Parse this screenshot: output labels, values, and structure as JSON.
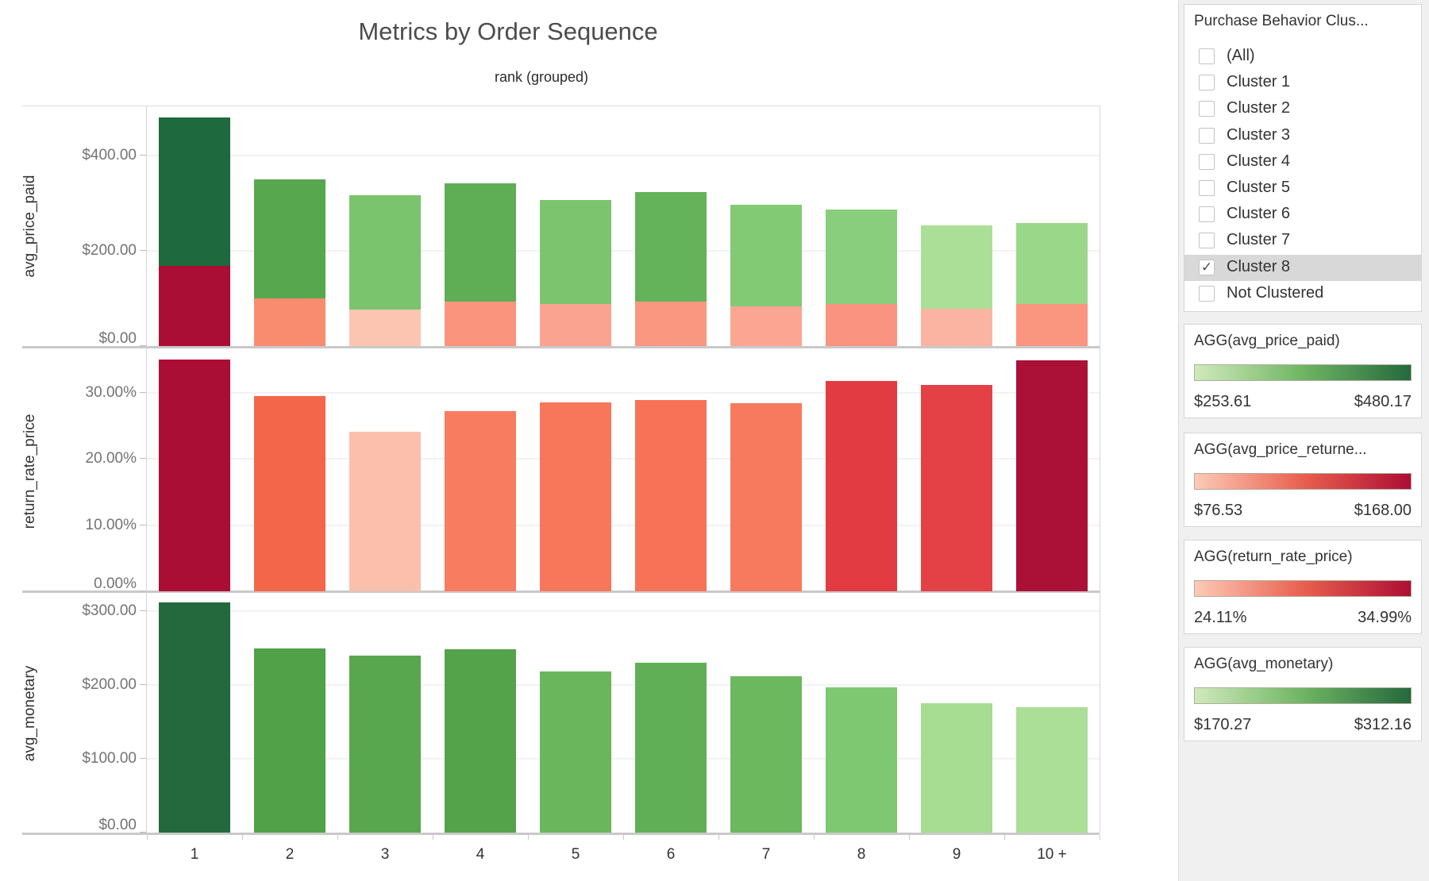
{
  "title": "Metrics by Order Sequence",
  "x_axis": {
    "title": "rank (grouped)",
    "categories": [
      "1",
      "2",
      "3",
      "4",
      "5",
      "6",
      "7",
      "8",
      "9",
      "10 +"
    ]
  },
  "panels": [
    {
      "field": "avg_price_paid"
    },
    {
      "field": "return_rate_price"
    },
    {
      "field": "avg_monetary"
    }
  ],
  "chart_data": [
    {
      "type": "bar",
      "stacked": true,
      "title": "avg_price_paid (stacked: avg_price_returned bottom + remainder top)",
      "categories": [
        "1",
        "2",
        "3",
        "4",
        "5",
        "6",
        "7",
        "8",
        "9",
        "10 +"
      ],
      "series": [
        {
          "name": "avg_price_paid_total",
          "values": [
            480.17,
            350,
            316.5,
            341,
            306,
            323,
            296,
            286,
            253.61,
            258.3
          ]
        },
        {
          "name": "avg_price_returned_bottom_segment",
          "values": [
            168.0,
            100,
            76.53,
            93,
            88,
            93,
            84,
            89,
            78,
            88
          ]
        }
      ],
      "top_segment_colors": [
        "#1e6a3e",
        "#57a74e",
        "#79c46c",
        "#5fae55",
        "#7cc46e",
        "#64b259",
        "#82ca74",
        "#89ce7c",
        "#abdf97",
        "#9bd789"
      ],
      "bottom_segment_colors": [
        "#aa0e35",
        "#f98b6e",
        "#fcc5b1",
        "#fa947d",
        "#fba391",
        "#fa9780",
        "#fba592",
        "#fa9480",
        "#fcb4a2",
        "#fa9580"
      ],
      "ylabel": "avg_price_paid",
      "yticks": [
        "$0.00",
        "$200.00",
        "$400.00"
      ],
      "ytick_values": [
        0,
        200,
        400
      ],
      "ylim": [
        0,
        505
      ],
      "grid": true
    },
    {
      "type": "bar",
      "title": "return_rate_price",
      "categories": [
        "1",
        "2",
        "3",
        "4",
        "5",
        "6",
        "7",
        "8",
        "9",
        "10 +"
      ],
      "values": [
        34.99,
        29.5,
        24.11,
        27.2,
        28.5,
        28.9,
        28.4,
        31.7,
        31.1,
        34.9
      ],
      "bar_colors": [
        "#aa0e35",
        "#f4664a",
        "#fcbfab",
        "#f87c60",
        "#f8775b",
        "#f77257",
        "#f87a5e",
        "#e23b41",
        "#e34146",
        "#ab1036"
      ],
      "ylabel": "return_rate_price",
      "yticks": [
        "0.00%",
        "10.00%",
        "20.00%",
        "30.00%"
      ],
      "ytick_values": [
        0,
        10,
        20,
        30
      ],
      "ylim": [
        0,
        36.3
      ],
      "grid": true
    },
    {
      "type": "bar",
      "title": "avg_monetary",
      "categories": [
        "1",
        "2",
        "3",
        "4",
        "5",
        "6",
        "7",
        "8",
        "9",
        "10 +"
      ],
      "values": [
        312.16,
        250,
        240,
        248,
        218,
        230,
        212,
        197,
        175.6,
        170.27
      ],
      "bar_colors": [
        "#24693d",
        "#51a148",
        "#58a64e",
        "#54a34b",
        "#69b65d",
        "#60af56",
        "#6bb85f",
        "#7fc872",
        "#a7dc93",
        "#abdf97"
      ],
      "ylabel": "avg_monetary",
      "yticks": [
        "$0.00",
        "$100.00",
        "$200.00",
        "$300.00"
      ],
      "ytick_values": [
        0,
        100,
        200,
        300
      ],
      "ylim": [
        0,
        322.5
      ],
      "grid": true
    }
  ],
  "filter": {
    "title": "Purchase Behavior Clus...",
    "items": [
      {
        "label": "(All)",
        "checked": false
      },
      {
        "label": "Cluster 1",
        "checked": false
      },
      {
        "label": "Cluster 2",
        "checked": false
      },
      {
        "label": "Cluster 3",
        "checked": false
      },
      {
        "label": "Cluster 4",
        "checked": false
      },
      {
        "label": "Cluster 5",
        "checked": false
      },
      {
        "label": "Cluster 6",
        "checked": false
      },
      {
        "label": "Cluster 7",
        "checked": false
      },
      {
        "label": "Cluster 8",
        "checked": true
      },
      {
        "label": "Not Clustered",
        "checked": false
      }
    ],
    "checkmark": "✓"
  },
  "legends": [
    {
      "title": "AGG(avg_price_paid)",
      "min": "$253.61",
      "max": "$480.17",
      "ramp_from": "#cfeabc",
      "ramp_mid": "#6fb563",
      "ramp_to": "#24693d"
    },
    {
      "title": "AGG(avg_price_returne...",
      "min": "$76.53",
      "max": "$168.00",
      "ramp_from": "#fdcab7",
      "ramp_mid": "#e8604e",
      "ramp_to": "#ae0e34"
    },
    {
      "title": "AGG(return_rate_price)",
      "min": "24.11%",
      "max": "34.99%",
      "ramp_from": "#fdcab7",
      "ramp_mid": "#e8604e",
      "ramp_to": "#ae0e34"
    },
    {
      "title": "AGG(avg_monetary)",
      "min": "$170.27",
      "max": "$312.16",
      "ramp_from": "#cfeabc",
      "ramp_mid": "#6fb563",
      "ramp_to": "#24693d"
    }
  ]
}
